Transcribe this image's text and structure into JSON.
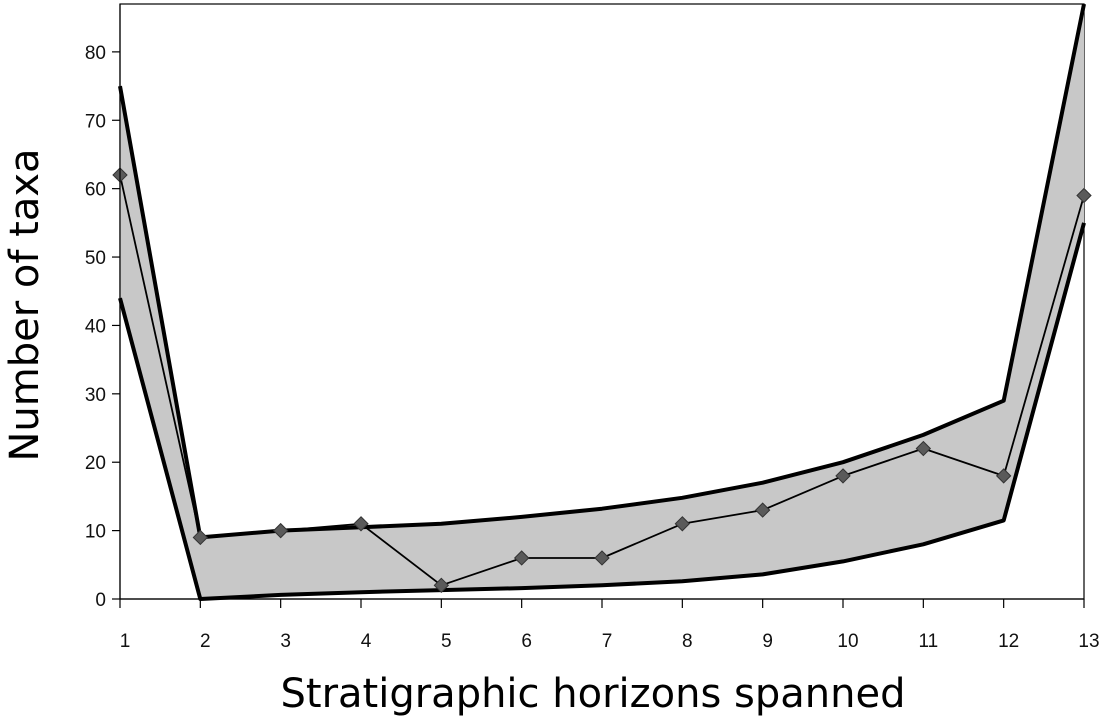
{
  "chart_data": {
    "type": "line",
    "title": "",
    "xlabel": "Stratigraphic horizons spanned",
    "ylabel": "Number of taxa",
    "x": [
      1,
      2,
      3,
      4,
      5,
      6,
      7,
      8,
      9,
      10,
      11,
      12,
      13
    ],
    "xlim": [
      1,
      13
    ],
    "ylim": [
      0,
      87
    ],
    "x_ticks": [
      "1",
      "2",
      "3",
      "4",
      "5",
      "6",
      "7",
      "8",
      "9",
      "10",
      "11",
      "12",
      "13"
    ],
    "y_ticks": [
      "0",
      "10",
      "20",
      "30",
      "40",
      "50",
      "60",
      "70",
      "80"
    ],
    "grid": false,
    "legend": "none",
    "series": [
      {
        "values": [
          62,
          9,
          10,
          11,
          2,
          6,
          6,
          11,
          13,
          18,
          22,
          18,
          59
        ]
      }
    ],
    "band": {
      "upper": [
        75,
        9,
        10,
        10.5,
        11,
        12,
        13.2,
        14.8,
        17,
        20,
        24,
        29,
        87
      ],
      "lower": [
        44,
        0,
        0.6,
        1,
        1.3,
        1.6,
        2,
        2.6,
        3.6,
        5.5,
        8,
        11.5,
        55
      ]
    },
    "colors": {
      "band_fill": "#c8c8c8",
      "band_edge": "#000000",
      "line": "#000000",
      "marker": "#5a5a5a"
    }
  }
}
